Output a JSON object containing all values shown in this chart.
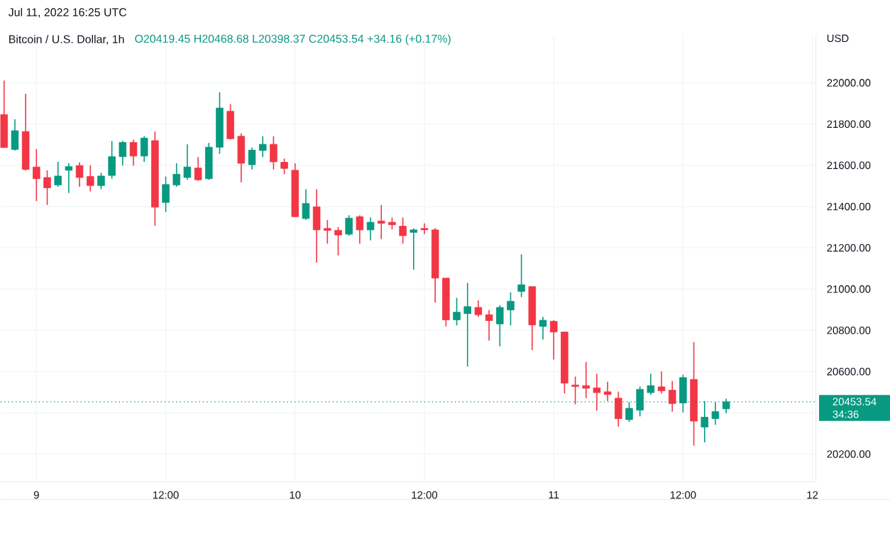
{
  "chart_data": {
    "type": "candlestick",
    "title": "Bitcoin / U.S. Dollar, 1h",
    "subtitle": "O20419.45 H20468.68 L20398.37 C20453.54 +34.16 (+0.17%)",
    "ylabel": "USD",
    "annotations": [
      "Jul 11, 2022 16:25 UTC",
      "34:36"
    ],
    "x": [
      "2022-07-08T21:00",
      "2022-07-08T22:00",
      "2022-07-08T23:00",
      "2022-07-09T00:00",
      "2022-07-09T01:00",
      "2022-07-09T02:00",
      "2022-07-09T03:00",
      "2022-07-09T04:00",
      "2022-07-09T05:00",
      "2022-07-09T06:00",
      "2022-07-09T07:00",
      "2022-07-09T08:00",
      "2022-07-09T09:00",
      "2022-07-09T10:00",
      "2022-07-09T11:00",
      "2022-07-09T12:00",
      "2022-07-09T13:00",
      "2022-07-09T14:00",
      "2022-07-09T15:00",
      "2022-07-09T16:00",
      "2022-07-09T17:00",
      "2022-07-09T18:00",
      "2022-07-09T19:00",
      "2022-07-09T20:00",
      "2022-07-09T21:00",
      "2022-07-09T22:00",
      "2022-07-09T23:00",
      "2022-07-10T00:00",
      "2022-07-10T01:00",
      "2022-07-10T02:00",
      "2022-07-10T03:00",
      "2022-07-10T04:00",
      "2022-07-10T05:00",
      "2022-07-10T06:00",
      "2022-07-10T07:00",
      "2022-07-10T08:00",
      "2022-07-10T09:00",
      "2022-07-10T10:00",
      "2022-07-10T11:00",
      "2022-07-10T12:00",
      "2022-07-10T13:00",
      "2022-07-10T14:00",
      "2022-07-10T15:00",
      "2022-07-10T16:00",
      "2022-07-10T17:00",
      "2022-07-10T18:00",
      "2022-07-10T19:00",
      "2022-07-10T20:00",
      "2022-07-10T21:00",
      "2022-07-10T22:00",
      "2022-07-10T23:00",
      "2022-07-11T00:00",
      "2022-07-11T01:00",
      "2022-07-11T02:00",
      "2022-07-11T03:00",
      "2022-07-11T04:00",
      "2022-07-11T05:00",
      "2022-07-11T06:00",
      "2022-07-11T07:00",
      "2022-07-11T08:00",
      "2022-07-11T09:00",
      "2022-07-11T10:00",
      "2022-07-11T11:00",
      "2022-07-11T12:00",
      "2022-07-11T13:00",
      "2022-07-11T14:00",
      "2022-07-11T15:00",
      "2022-07-11T16:00"
    ],
    "ohlc": [
      [
        21846,
        22011,
        21686,
        21686
      ],
      [
        21677,
        21823,
        21672,
        21768
      ],
      [
        21764,
        21947,
        21575,
        21580
      ],
      [
        21592,
        21679,
        21427,
        21535
      ],
      [
        21541,
        21576,
        21408,
        21491
      ],
      [
        21505,
        21617,
        21496,
        21548
      ],
      [
        21576,
        21610,
        21466,
        21594
      ],
      [
        21599,
        21615,
        21496,
        21541
      ],
      [
        21546,
        21599,
        21473,
        21502
      ],
      [
        21502,
        21564,
        21484,
        21548
      ],
      [
        21551,
        21718,
        21535,
        21642
      ],
      [
        21642,
        21718,
        21599,
        21711
      ],
      [
        21711,
        21725,
        21599,
        21645
      ],
      [
        21645,
        21741,
        21617,
        21732
      ],
      [
        21720,
        21764,
        21307,
        21397
      ],
      [
        21420,
        21546,
        21374,
        21507
      ],
      [
        21505,
        21610,
        21496,
        21557
      ],
      [
        21541,
        21702,
        21530,
        21592
      ],
      [
        21587,
        21640,
        21525,
        21530
      ],
      [
        21535,
        21709,
        21530,
        21688
      ],
      [
        21688,
        21954,
        21656,
        21878
      ],
      [
        21862,
        21897,
        21725,
        21729
      ],
      [
        21741,
        21755,
        21518,
        21610
      ],
      [
        21603,
        21686,
        21580,
        21674
      ],
      [
        21672,
        21741,
        21640,
        21702
      ],
      [
        21702,
        21741,
        21580,
        21617
      ],
      [
        21615,
        21633,
        21557,
        21585
      ],
      [
        21576,
        21610,
        21349,
        21351
      ],
      [
        21342,
        21484,
        21335,
        21415
      ],
      [
        21399,
        21484,
        21129,
        21287
      ],
      [
        21294,
        21335,
        21220,
        21285
      ],
      [
        21285,
        21301,
        21163,
        21262
      ],
      [
        21266,
        21358,
        21259,
        21344
      ],
      [
        21351,
        21358,
        21220,
        21287
      ],
      [
        21287,
        21347,
        21236,
        21324
      ],
      [
        21330,
        21408,
        21243,
        21319
      ],
      [
        21324,
        21347,
        21289,
        21312
      ],
      [
        21305,
        21347,
        21220,
        21259
      ],
      [
        21275,
        21294,
        21094,
        21287
      ],
      [
        21294,
        21319,
        21266,
        21287
      ],
      [
        21287,
        21296,
        20934,
        21053
      ],
      [
        21053,
        21053,
        20819,
        20851
      ],
      [
        20851,
        20957,
        20824,
        20888
      ],
      [
        20881,
        21030,
        20624,
        20915
      ],
      [
        20911,
        20945,
        20865,
        20876
      ],
      [
        20876,
        20899,
        20750,
        20847
      ],
      [
        20831,
        20922,
        20723,
        20911
      ],
      [
        20899,
        20984,
        20824,
        20941
      ],
      [
        20989,
        21168,
        20961,
        21021
      ],
      [
        21012,
        21012,
        20704,
        20826
      ],
      [
        20819,
        20865,
        20755,
        20849
      ],
      [
        20844,
        20849,
        20659,
        20792
      ],
      [
        20792,
        20792,
        20494,
        20544
      ],
      [
        20535,
        20576,
        20441,
        20528
      ],
      [
        20532,
        20647,
        20471,
        20519
      ],
      [
        20521,
        20590,
        20411,
        20498
      ],
      [
        20502,
        20551,
        20457,
        20489
      ],
      [
        20471,
        20503,
        20333,
        20372
      ],
      [
        20367,
        20452,
        20356,
        20422
      ],
      [
        20413,
        20528,
        20383,
        20514
      ],
      [
        20498,
        20590,
        20487,
        20532
      ],
      [
        20526,
        20601,
        20494,
        20507
      ],
      [
        20510,
        20555,
        20406,
        20445
      ],
      [
        20448,
        20585,
        20402,
        20571
      ],
      [
        20562,
        20743,
        20241,
        20360
      ],
      [
        20331,
        20457,
        20257,
        20379
      ],
      [
        20372,
        20452,
        20342,
        20406
      ],
      [
        20419.45,
        20468.68,
        20398.37,
        20453.54
      ]
    ],
    "colors": [
      "#f23645",
      "#089981",
      "#f23645",
      "#f23645",
      "#f23645",
      "#089981",
      "#089981",
      "#f23645",
      "#f23645",
      "#089981",
      "#089981",
      "#089981",
      "#f23645",
      "#089981",
      "#f23645",
      "#089981",
      "#089981",
      "#089981",
      "#f23645",
      "#089981",
      "#089981",
      "#f23645",
      "#f23645",
      "#089981",
      "#089981",
      "#f23645",
      "#f23645",
      "#f23645",
      "#089981",
      "#f23645",
      "#f23645",
      "#f23645",
      "#089981",
      "#f23645",
      "#089981",
      "#f23645",
      "#f23645",
      "#f23645",
      "#089981",
      "#f23645",
      "#f23645",
      "#f23645",
      "#089981",
      "#089981",
      "#f23645",
      "#f23645",
      "#089981",
      "#089981",
      "#089981",
      "#f23645",
      "#089981",
      "#f23645",
      "#f23645",
      "#f23645",
      "#f23645",
      "#f23645",
      "#f23645",
      "#f23645",
      "#089981",
      "#089981",
      "#089981",
      "#f23645",
      "#f23645",
      "#089981",
      "#f23645",
      "#089981",
      "#089981",
      "#089981"
    ],
    "xlim": [
      "2022-07-08T20:40",
      "2022-07-12T00:20"
    ],
    "xticks": [
      {
        "value": "2022-07-09T00:00",
        "label": "9"
      },
      {
        "value": "2022-07-09T12:00",
        "label": "12:00"
      },
      {
        "value": "2022-07-10T00:00",
        "label": "10"
      },
      {
        "value": "2022-07-10T12:00",
        "label": "12:00"
      },
      {
        "value": "2022-07-11T00:00",
        "label": "11"
      },
      {
        "value": "2022-07-11T12:00",
        "label": "12:00"
      },
      {
        "value": "2022-07-12T00:00",
        "label": "12"
      }
    ],
    "ylim": [
      20065,
      22232
    ],
    "yticks": [
      {
        "value": 20200,
        "label": "20200.00"
      },
      {
        "value": 20400,
        "label": null
      },
      {
        "value": 20600,
        "label": "20600.00"
      },
      {
        "value": 20800,
        "label": "20800.00"
      },
      {
        "value": 21000,
        "label": "21000.00"
      },
      {
        "value": 21200,
        "label": "21200.00"
      },
      {
        "value": 21400,
        "label": "21400.00"
      },
      {
        "value": 21600,
        "label": "21600.00"
      },
      {
        "value": 21800,
        "label": "21800.00"
      },
      {
        "value": 22000,
        "label": "22000.00"
      }
    ],
    "grid": true,
    "ref_lines": [
      {
        "axis": "y",
        "value": 20453.54,
        "label": "20453.54",
        "color": "#089981",
        "line_style": "dotted"
      }
    ]
  }
}
